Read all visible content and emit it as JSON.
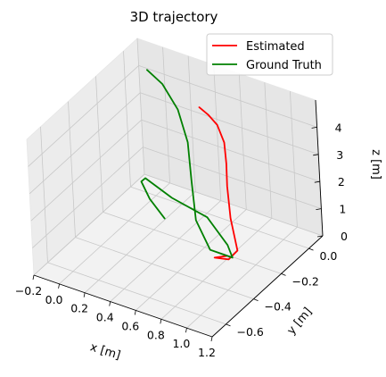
{
  "chart_data": {
    "type": "line",
    "projection": "3d",
    "title": "3D trajectory",
    "xlabel": "x [m]",
    "ylabel": "y [m]",
    "zlabel": "z [m]",
    "xlim": [
      -0.2,
      1.2
    ],
    "ylim": [
      -0.7,
      0.1
    ],
    "zlim": [
      0,
      5
    ],
    "xticks": [
      "−0.2",
      "0.0",
      "0.2",
      "0.4",
      "0.6",
      "0.8",
      "1.0",
      "1.2"
    ],
    "yticks": [
      "−0.6",
      "−0.4",
      "−0.2",
      "0.0"
    ],
    "zticks": [
      "0",
      "1",
      "2",
      "3",
      "4"
    ],
    "grid": true,
    "legend_position": "top-right",
    "series": [
      {
        "name": "Estimated",
        "color": "#ff0000",
        "points": [
          {
            "x": 0.44,
            "y": -0.05,
            "z": 4.2
          },
          {
            "x": 0.52,
            "y": -0.06,
            "z": 4.1
          },
          {
            "x": 0.6,
            "y": -0.07,
            "z": 3.9
          },
          {
            "x": 0.66,
            "y": -0.08,
            "z": 3.4
          },
          {
            "x": 0.68,
            "y": -0.09,
            "z": 2.7
          },
          {
            "x": 0.7,
            "y": -0.11,
            "z": 2.0
          },
          {
            "x": 0.76,
            "y": -0.15,
            "z": 1.1
          },
          {
            "x": 0.86,
            "y": -0.2,
            "z": 0.3
          },
          {
            "x": 0.82,
            "y": -0.23,
            "z": 0.05
          },
          {
            "x": 0.72,
            "y": -0.24,
            "z": 0.0
          },
          {
            "x": 0.8,
            "y": -0.22,
            "z": 0.1
          }
        ]
      },
      {
        "name": "Ground Truth",
        "color": "#008000",
        "points": [
          {
            "x": -0.02,
            "y": 0.0,
            "z": 4.6
          },
          {
            "x": 0.12,
            "y": -0.02,
            "z": 4.4
          },
          {
            "x": 0.28,
            "y": -0.06,
            "z": 3.9
          },
          {
            "x": 0.38,
            "y": -0.09,
            "z": 3.0
          },
          {
            "x": 0.44,
            "y": -0.13,
            "z": 1.9
          },
          {
            "x": 0.54,
            "y": -0.2,
            "z": 0.9
          },
          {
            "x": 0.7,
            "y": -0.25,
            "z": 0.3
          },
          {
            "x": 0.84,
            "y": -0.22,
            "z": 0.1
          },
          {
            "x": 0.76,
            "y": -0.18,
            "z": 0.25
          },
          {
            "x": 0.55,
            "y": -0.13,
            "z": 0.7
          },
          {
            "x": 0.3,
            "y": -0.15,
            "z": 1.1
          },
          {
            "x": 0.06,
            "y": -0.12,
            "z": 1.3
          },
          {
            "x": 0.05,
            "y": -0.14,
            "z": 1.25
          },
          {
            "x": 0.18,
            "y": -0.2,
            "z": 1.1
          },
          {
            "x": 0.36,
            "y": -0.26,
            "z": 0.95
          }
        ]
      }
    ]
  }
}
